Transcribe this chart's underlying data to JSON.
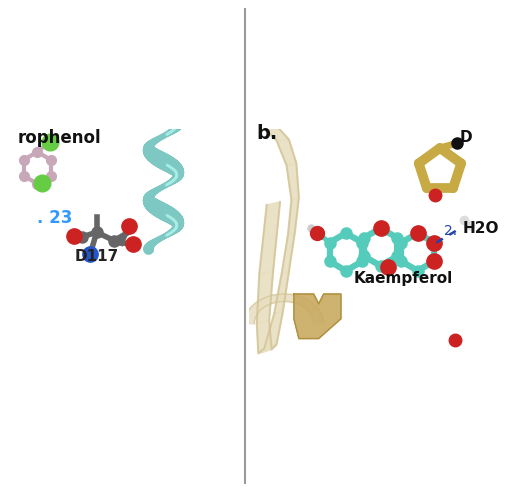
{
  "bg_color": "#ffffff",
  "panel_a": {
    "bg": "#ffffff",
    "nitrophenol_label": "rophenol",
    "nitrophenol_color": "#c8a8b8",
    "green_color": "#66cc44",
    "helix_color": "#88cccc",
    "helix_color2": "#aadddd",
    "d117_gray": "#666666",
    "d117_red": "#cc2222",
    "d117_blue": "#2255cc",
    "d117_label": "D117",
    "annotation_text": ". 23",
    "annotation_color": "#3399ff"
  },
  "panel_b": {
    "bg": "#ffffff",
    "label": "b.",
    "ribbon_cream": "#e8dfc0",
    "ribbon_tan": "#c8aa55",
    "ribbon_outline": "#b89840",
    "kaempferol_stick": "#55ccbb",
    "kaempferol_oxygen": "#cc2222",
    "kaempferol_label": "Kaempferol",
    "h2o_label": "H2O",
    "hbond_color": "#2244aa",
    "d_label": "D",
    "imidazole_color": "#c8aa44"
  },
  "divider_color": "#999999"
}
